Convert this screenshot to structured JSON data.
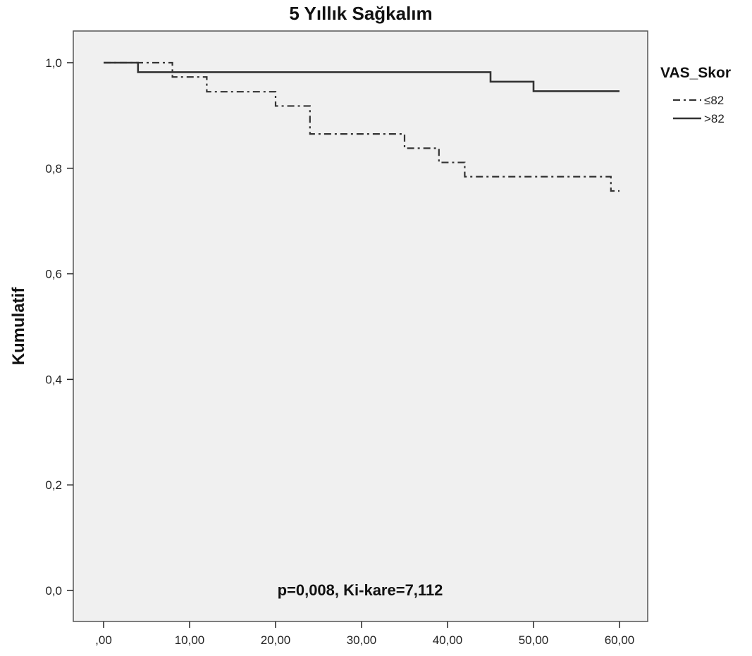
{
  "chart_data": {
    "type": "line",
    "title": "5 Yıllık Sağkalım",
    "xlabel": "",
    "ylabel": "Kumulatif",
    "xlim": [
      0,
      60
    ],
    "ylim": [
      0,
      1
    ],
    "x_ticks": [
      ",00",
      "10,00",
      "20,00",
      "30,00",
      "40,00",
      "50,00",
      "60,00"
    ],
    "y_ticks": [
      "0,0",
      "0,2",
      "0,4",
      "0,6",
      "0,8",
      "1,0"
    ],
    "x_tick_values": [
      0,
      10,
      20,
      30,
      40,
      50,
      60
    ],
    "y_tick_values": [
      0,
      0.2,
      0.4,
      0.6,
      0.8,
      1.0
    ],
    "grid": false,
    "legend": {
      "title": "VAS_Skor",
      "placement": "right",
      "entries": [
        "≤82",
        ">82"
      ]
    },
    "annotation": "p=0,008, Ki-kare=7,112",
    "series": [
      {
        "name": "≤82",
        "style": "dash-dot",
        "color": "#333333",
        "x": [
          0,
          8,
          12,
          20,
          24,
          35,
          39,
          42,
          59,
          60
        ],
        "y": [
          1.0,
          0.973,
          0.945,
          0.918,
          0.865,
          0.838,
          0.811,
          0.784,
          0.757,
          0.757
        ]
      },
      {
        "name": ">82",
        "style": "solid",
        "color": "#333333",
        "x": [
          0,
          4,
          45,
          50,
          60
        ],
        "y": [
          1.0,
          0.982,
          0.964,
          0.946,
          0.946
        ]
      }
    ]
  },
  "colors": {
    "plot_background": "#f0f0f0",
    "axis": "#222222"
  }
}
